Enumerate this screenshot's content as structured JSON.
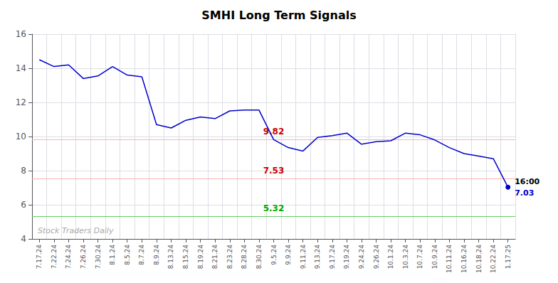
{
  "chart_data": {
    "type": "line",
    "title": "SMHI Long Term Signals",
    "categories": [
      "7.17.24",
      "7.22.24",
      "7.24.24",
      "7.26.24",
      "7.30.24",
      "8.1.24",
      "8.5.24",
      "8.7.24",
      "8.9.24",
      "8.13.24",
      "8.15.24",
      "8.19.24",
      "8.21.24",
      "8.23.24",
      "8.28.24",
      "8.30.24",
      "9.5.24",
      "9.9.24",
      "9.11.24",
      "9.13.24",
      "9.17.24",
      "9.19.24",
      "9.24.24",
      "9.26.24",
      "10.1.24",
      "10.3.24",
      "10.7.24",
      "10.9.24",
      "10.11.24",
      "10.16.24",
      "10.18.24",
      "10.22.24",
      "1.17.25"
    ],
    "values": [
      14.5,
      14.1,
      14.2,
      13.4,
      13.55,
      14.1,
      13.6,
      13.5,
      10.7,
      10.5,
      10.95,
      11.15,
      11.05,
      11.5,
      11.55,
      11.55,
      9.82,
      9.35,
      9.15,
      9.95,
      10.05,
      10.2,
      9.55,
      9.7,
      9.75,
      10.2,
      10.1,
      9.8,
      9.35,
      9.0,
      8.85,
      8.7,
      7.03
    ],
    "color": "#0000cc",
    "ylim": [
      4,
      16
    ],
    "yticks": [
      4,
      6,
      8,
      10,
      12,
      14,
      16
    ],
    "grid": true,
    "reference_lines": [
      {
        "value": 9.82,
        "label": "9.82",
        "color": "#cc0000",
        "line_color": "#ffb0b0"
      },
      {
        "value": 7.53,
        "label": "7.53",
        "color": "#cc0000",
        "line_color": "#ffb0b0"
      },
      {
        "value": 5.32,
        "label": "5.32",
        "color": "#00aa00",
        "line_color": "#66cc66"
      }
    ],
    "end_labels": [
      {
        "text": "16:00",
        "color": "#000000"
      },
      {
        "text": "7.03",
        "color": "#0000cc"
      }
    ],
    "watermark": {
      "text": "Stock Traders Daily",
      "color": "#aaaaaa"
    }
  }
}
